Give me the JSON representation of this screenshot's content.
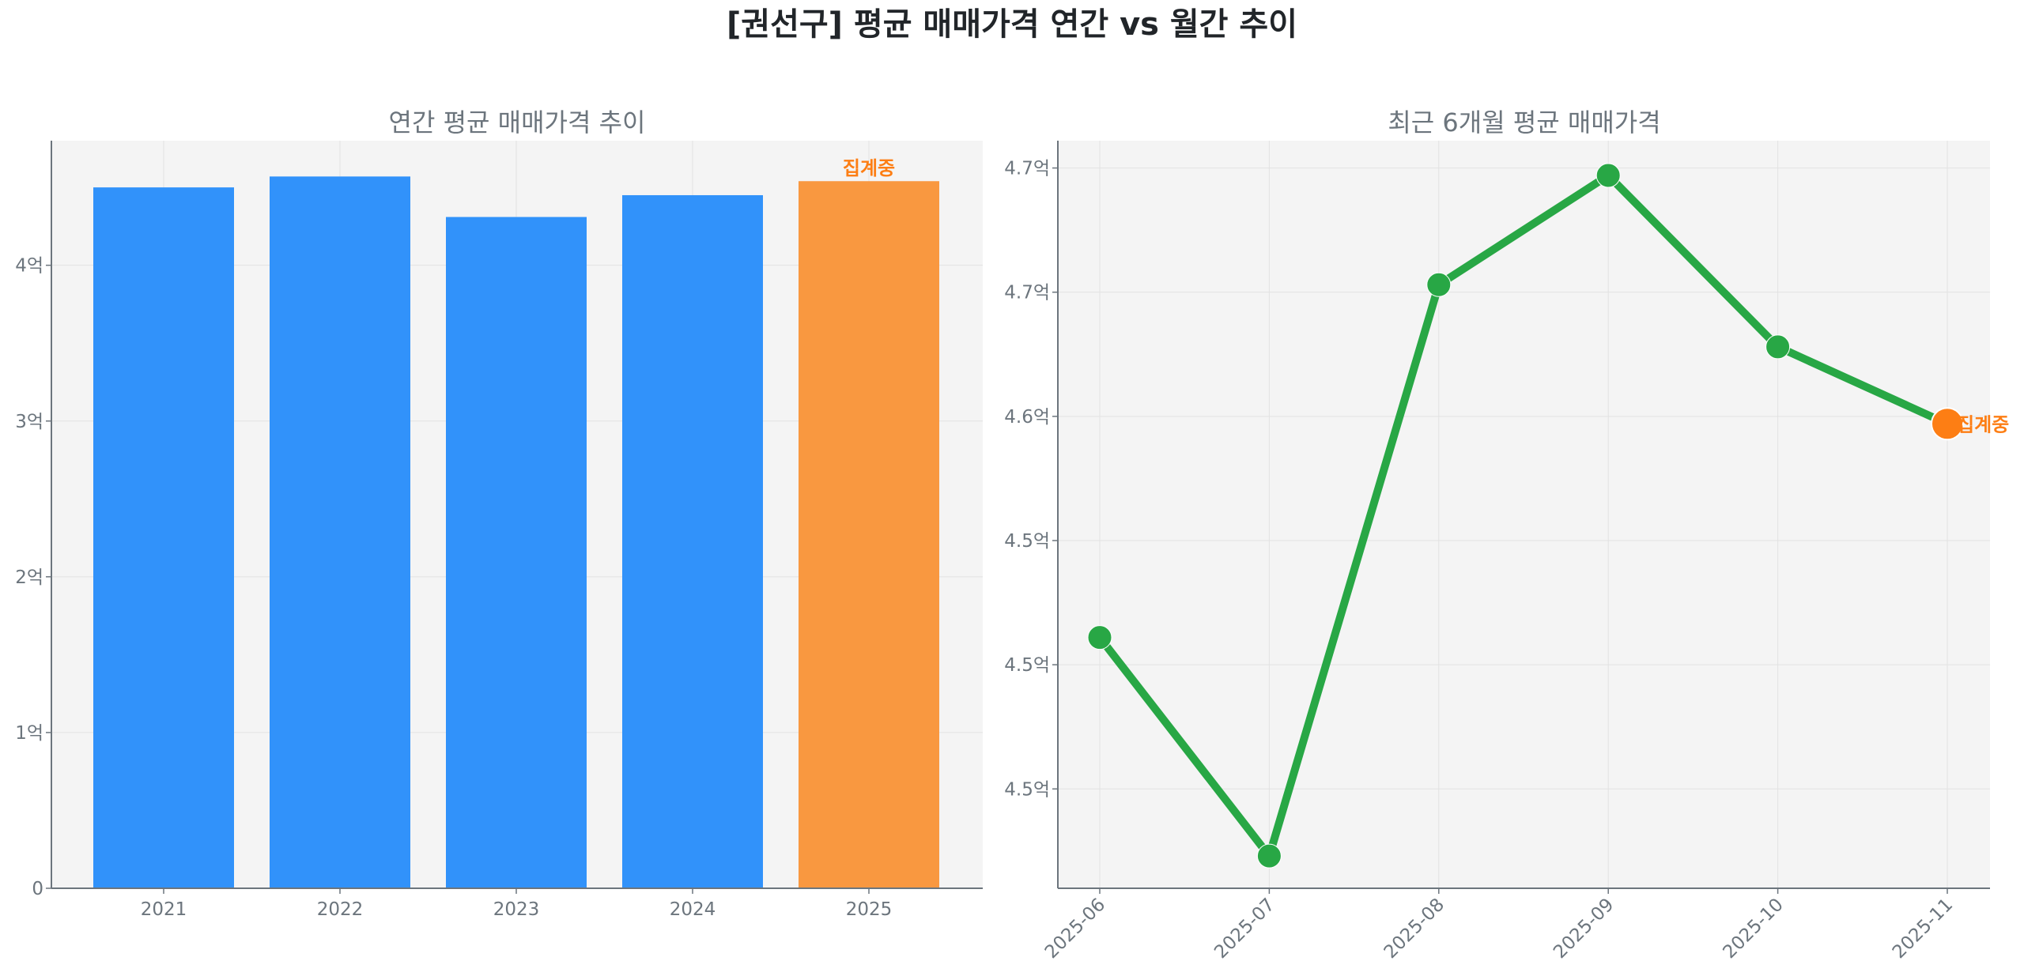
{
  "title": "[권선구] 평균 매매가격 연간 vs 월간 추이",
  "colors": {
    "bar": "#3192fa",
    "bar_partial": "#f99840",
    "line": "#28a745",
    "partial_marker": "#fd7e14",
    "text": "#6c757d",
    "plot_bg": "#f4f4f4"
  },
  "chart_data": [
    {
      "type": "bar",
      "title": "연간 평균 매매가격 추이",
      "categories": [
        "2021",
        "2022",
        "2023",
        "2024",
        "2025"
      ],
      "values": [
        4.5,
        4.57,
        4.31,
        4.45,
        4.54
      ],
      "unit": "억",
      "yticks": [
        0,
        1,
        2,
        3,
        4
      ],
      "ytick_labels": [
        "0",
        "1억",
        "2억",
        "3억",
        "4억"
      ],
      "ylim": [
        0,
        4.8
      ],
      "grid": true,
      "annotation": {
        "category": "2025",
        "text": "집계중"
      }
    },
    {
      "type": "line",
      "title": "최근 6개월 평균 매매가격",
      "categories": [
        "2025-06",
        "2025-07",
        "2025-08",
        "2025-09",
        "2025-10",
        "2025-11"
      ],
      "values": [
        4.511,
        4.423,
        4.653,
        4.697,
        4.628,
        4.597
      ],
      "unit": "억",
      "yticks": [
        4.7,
        4.65,
        4.6,
        4.55,
        4.5,
        4.45
      ],
      "ytick_labels": [
        "4.7억",
        "4.7억",
        "4.6억",
        "4.5억",
        "4.5억",
        "4.5억"
      ],
      "ylim": [
        4.41,
        4.711
      ],
      "grid": true,
      "xtick_rotation": 45,
      "annotation": {
        "category": "2025-11",
        "text": "집계중"
      }
    }
  ]
}
